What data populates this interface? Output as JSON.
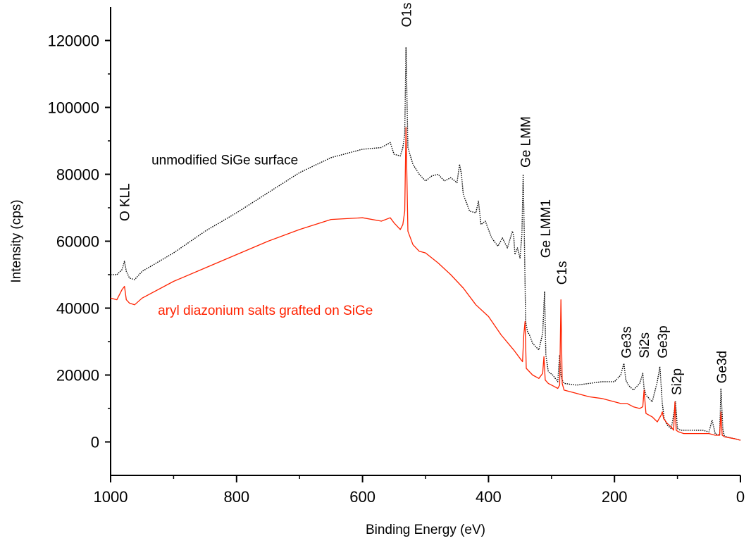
{
  "chart_data": {
    "type": "line",
    "xlabel": "Binding Energy (eV)",
    "ylabel": "Intensity (cps)",
    "xlim": [
      1000,
      0
    ],
    "ylim": [
      -10000,
      130000
    ],
    "x_reversed": true,
    "xticks": [
      1000,
      800,
      600,
      400,
      200,
      0
    ],
    "yticks": [
      0,
      20000,
      40000,
      60000,
      80000,
      100000,
      120000
    ],
    "x_tick_labels": [
      "1000",
      "800",
      "600",
      "400",
      "200",
      "0"
    ],
    "y_tick_labels": [
      "0",
      "20000",
      "40000",
      "60000",
      "80000",
      "100000",
      "120000"
    ],
    "colors": {
      "unmodified": "#000000",
      "grafted": "#ff2200"
    },
    "series": [
      {
        "key": "unmodified",
        "style": "dotted",
        "x": [
          1000,
          990,
          982,
          978,
          975,
          970,
          962,
          950,
          900,
          850,
          800,
          750,
          700,
          650,
          600,
          570,
          556,
          550,
          540,
          536,
          533,
          531,
          528,
          520,
          510,
          500,
          490,
          480,
          470,
          460,
          450,
          446,
          443,
          440,
          430,
          420,
          416,
          412,
          405,
          395,
          385,
          378,
          370,
          362,
          360,
          358,
          354,
          350,
          347,
          345,
          343,
          341,
          338,
          335,
          330,
          320,
          314,
          311,
          309,
          305,
          298,
          290,
          287,
          285,
          283,
          280,
          260,
          240,
          220,
          200,
          190,
          185,
          182,
          178,
          170,
          160,
          155,
          153,
          150,
          140,
          132,
          128,
          126,
          124,
          121,
          116,
          110,
          106,
          103,
          100,
          95,
          80,
          60,
          50,
          45,
          40,
          33,
          31,
          28,
          26,
          22,
          10,
          0
        ],
        "y": [
          50000,
          50000,
          51500,
          54000,
          51000,
          49000,
          48500,
          51000,
          56500,
          63000,
          68500,
          74500,
          80500,
          85000,
          87500,
          88000,
          89500,
          86000,
          85500,
          88000,
          92000,
          118000,
          88000,
          83000,
          80000,
          78000,
          79500,
          80000,
          78000,
          79000,
          77500,
          83000,
          80000,
          74000,
          69000,
          68500,
          72000,
          65000,
          66000,
          61000,
          58500,
          61000,
          58000,
          63000,
          61500,
          56000,
          58000,
          55000,
          62000,
          80000,
          60000,
          36000,
          33000,
          32000,
          29500,
          27500,
          32500,
          45000,
          26000,
          21000,
          20000,
          18000,
          26000,
          20000,
          18500,
          17500,
          17000,
          17500,
          18000,
          18000,
          20000,
          23500,
          18500,
          17000,
          15500,
          17500,
          20500,
          16000,
          14000,
          12000,
          18000,
          22500,
          17000,
          11500,
          7000,
          5000,
          4000,
          8000,
          12000,
          4000,
          3500,
          3500,
          3500,
          3000,
          6500,
          2500,
          2000,
          16000,
          4000,
          2000,
          1500,
          1000,
          500
        ]
      },
      {
        "key": "grafted",
        "style": "solid",
        "x": [
          1000,
          990,
          982,
          978,
          975,
          970,
          962,
          950,
          900,
          850,
          800,
          750,
          700,
          650,
          600,
          570,
          556,
          550,
          540,
          536,
          533,
          531,
          528,
          520,
          510,
          500,
          480,
          460,
          440,
          420,
          400,
          380,
          360,
          350,
          346,
          344,
          342,
          340,
          330,
          320,
          314,
          312,
          310,
          305,
          295,
          290,
          287,
          285,
          283,
          280,
          260,
          240,
          220,
          200,
          190,
          180,
          170,
          160,
          155,
          153,
          150,
          140,
          132,
          126,
          124,
          122,
          116,
          110,
          106,
          104,
          102,
          98,
          90,
          80,
          60,
          50,
          40,
          33,
          31,
          29,
          25,
          10,
          0
        ],
        "y": [
          43000,
          42500,
          45500,
          46500,
          42500,
          41500,
          41000,
          43000,
          48000,
          52000,
          56000,
          60000,
          63500,
          66500,
          67000,
          66000,
          67000,
          65500,
          63500,
          65000,
          69000,
          94000,
          63000,
          59000,
          57000,
          56500,
          53500,
          50000,
          46000,
          41000,
          37500,
          32000,
          27500,
          25000,
          24000,
          32000,
          36000,
          22000,
          20000,
          19000,
          20500,
          25500,
          18500,
          17500,
          16500,
          16000,
          17000,
          42500,
          17500,
          15500,
          14500,
          13500,
          13000,
          12000,
          11500,
          11500,
          10500,
          10000,
          10500,
          15500,
          8500,
          7500,
          6000,
          8000,
          9000,
          7000,
          5500,
          4500,
          3500,
          12000,
          3500,
          3000,
          2500,
          2500,
          2500,
          2500,
          2000,
          2000,
          9000,
          2000,
          1500,
          1000,
          500
        ]
      }
    ],
    "peak_labels": [
      {
        "text": "O KLL",
        "x": 978,
        "y": 66000
      },
      {
        "text": "O1s",
        "x": 531,
        "y": 124000
      },
      {
        "text": "Ge LMM",
        "x": 342,
        "y": 82000
      },
      {
        "text": "Ge LMM1",
        "x": 310,
        "y": 55000
      },
      {
        "text": "C1s",
        "x": 284,
        "y": 47000
      },
      {
        "text": "Ge3s",
        "x": 182,
        "y": 25000
      },
      {
        "text": "Si2s",
        "x": 153,
        "y": 25000
      },
      {
        "text": "Ge3p",
        "x": 124,
        "y": 25000
      },
      {
        "text": "Si2p",
        "x": 102,
        "y": 14000
      },
      {
        "text": "Ge3d",
        "x": 30,
        "y": 17500
      }
    ],
    "annotations": [
      {
        "text": "unmodified SiGe surface",
        "x": 935,
        "y": 83000,
        "color_key": "unmodified"
      },
      {
        "text": "aryl diazonium salts grafted on SiGe",
        "x": 925,
        "y": 38000,
        "color_key": "grafted"
      }
    ]
  }
}
